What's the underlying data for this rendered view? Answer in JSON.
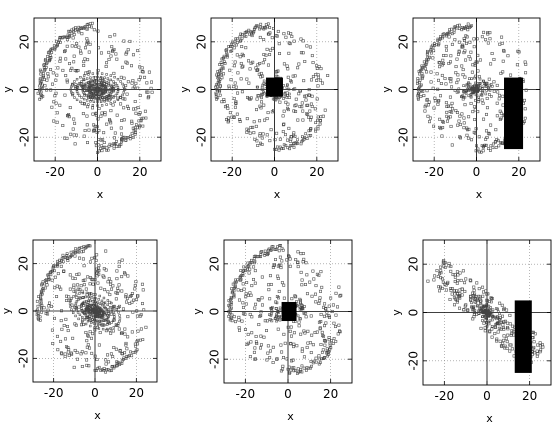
{
  "figure": {
    "background": "#ffffff",
    "frame_color": "#000000",
    "grid_color": "#888888",
    "point_color": "#444444",
    "block_color": "#000000"
  },
  "chart_data": [
    {
      "type": "scatter",
      "title": "",
      "xlabel": "x",
      "ylabel": "y",
      "xlim": [
        -30,
        30
      ],
      "ylim": [
        -30,
        30
      ],
      "grid": true,
      "xticks": [
        -20,
        0,
        20
      ],
      "yticks": [
        -20,
        0,
        20
      ],
      "x_tick_labels": [
        "-20",
        "0",
        "20"
      ],
      "y_tick_labels": [
        "-20",
        "0",
        "20"
      ],
      "block": null,
      "features": {
        "spiral_arc": true,
        "core_loops": true,
        "bar_angle_deg": 0
      },
      "marker": "open-square"
    },
    {
      "type": "scatter",
      "title": "",
      "xlabel": "x",
      "ylabel": "y",
      "xlim": [
        -30,
        30
      ],
      "ylim": [
        -30,
        30
      ],
      "grid": true,
      "xticks": [
        -20,
        0,
        20
      ],
      "yticks": [
        -20,
        0,
        20
      ],
      "x_tick_labels": [
        "-20",
        "0",
        "20"
      ],
      "y_tick_labels": [
        "-20",
        "0",
        "20"
      ],
      "block": {
        "x0": -4,
        "x1": 4,
        "y0": -3,
        "y1": 5
      },
      "features": {
        "spiral_arc": true,
        "core_loops": false,
        "bar_angle_deg": 0
      },
      "marker": "open-square"
    },
    {
      "type": "scatter",
      "title": "",
      "xlabel": "x",
      "ylabel": "y",
      "xlim": [
        -30,
        30
      ],
      "ylim": [
        -30,
        30
      ],
      "grid": true,
      "xticks": [
        -20,
        0,
        20
      ],
      "yticks": [
        -20,
        0,
        20
      ],
      "x_tick_labels": [
        "-20",
        "0",
        "20"
      ],
      "y_tick_labels": [
        "-20",
        "0",
        "20"
      ],
      "block": {
        "x0": 13,
        "x1": 22,
        "y0": -25,
        "y1": 5
      },
      "features": {
        "spiral_arc": true,
        "core_loops": false,
        "bar_angle_deg": 0
      },
      "marker": "open-square"
    },
    {
      "type": "scatter",
      "title": "",
      "xlabel": "x",
      "ylabel": "y",
      "xlim": [
        -30,
        30
      ],
      "ylim": [
        -30,
        30
      ],
      "grid": true,
      "xticks": [
        -20,
        0,
        20
      ],
      "yticks": [
        -20,
        0,
        20
      ],
      "x_tick_labels": [
        "-20",
        "0",
        "20"
      ],
      "y_tick_labels": [
        "-20",
        "0",
        "20"
      ],
      "block": null,
      "features": {
        "spiral_arc": true,
        "core_loops": true,
        "bar_angle_deg": -20
      },
      "marker": "open-square"
    },
    {
      "type": "scatter",
      "title": "",
      "xlabel": "x",
      "ylabel": "y",
      "xlim": [
        -30,
        30
      ],
      "ylim": [
        -30,
        30
      ],
      "grid": true,
      "xticks": [
        -20,
        0,
        20
      ],
      "yticks": [
        -20,
        0,
        20
      ],
      "x_tick_labels": [
        "-20",
        "0",
        "20"
      ],
      "y_tick_labels": [
        "-20",
        "0",
        "20"
      ],
      "block": {
        "x0": -3,
        "x1": 4,
        "y0": -4,
        "y1": 4
      },
      "features": {
        "spiral_arc": true,
        "core_loops": false,
        "bar_angle_deg": 0
      },
      "marker": "open-square"
    },
    {
      "type": "scatter",
      "title": "",
      "xlabel": "x",
      "ylabel": "y",
      "xlim": [
        -30,
        30
      ],
      "ylim": [
        -30,
        30
      ],
      "grid": true,
      "xticks": [
        -20,
        0,
        20
      ],
      "yticks": [
        -20,
        0,
        20
      ],
      "x_tick_labels": [
        "-20",
        "0",
        "20"
      ],
      "y_tick_labels": [
        "-20",
        "0",
        "20"
      ],
      "block": {
        "x0": 13,
        "x1": 21,
        "y0": -25,
        "y1": 5
      },
      "features": {
        "spiral_arc": false,
        "core_loops": false,
        "bar_angle_deg": -38
      },
      "marker": "open-square"
    }
  ]
}
